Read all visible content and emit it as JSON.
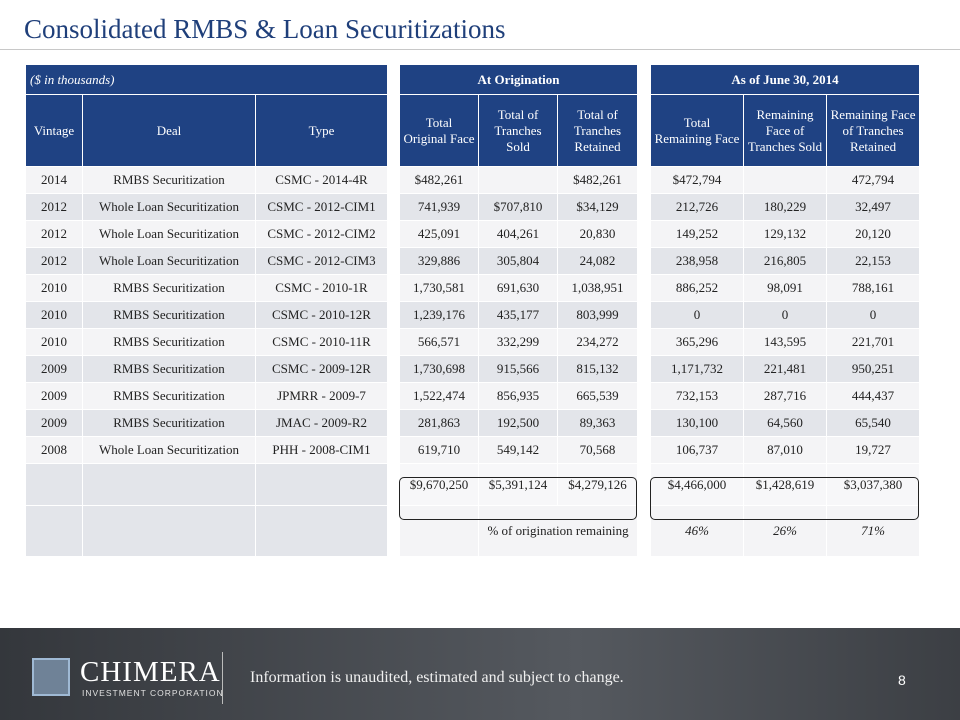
{
  "title": "Consolidated RMBS & Loan Securitizations",
  "table": {
    "note": "($ in thousands)",
    "groups": [
      "At Origination",
      "As of June 30, 2014"
    ],
    "columns": [
      "Vintage",
      "Deal",
      "Type",
      "Total Original Face",
      "Total of Tranches Sold",
      "Total of Tranches Retained",
      "Total Remaining Face",
      "Remaining Face of Tranches Sold",
      "Remaining Face of Tranches Retained"
    ],
    "rows": [
      [
        "2014",
        "RMBS Securitization",
        "CSMC - 2014-4R",
        "$482,261",
        null,
        "$482,261",
        "$472,794",
        null,
        "472,794"
      ],
      [
        "2012",
        "Whole Loan Securitization",
        "CSMC - 2012-CIM1",
        "741,939",
        "$707,810",
        "$34,129",
        "212,726",
        "180,229",
        "32,497"
      ],
      [
        "2012",
        "Whole Loan Securitization",
        "CSMC - 2012-CIM2",
        "425,091",
        "404,261",
        "20,830",
        "149,252",
        "129,132",
        "20,120"
      ],
      [
        "2012",
        "Whole Loan Securitization",
        "CSMC - 2012-CIM3",
        "329,886",
        "305,804",
        "24,082",
        "238,958",
        "216,805",
        "22,153"
      ],
      [
        "2010",
        "RMBS Securitization",
        "CSMC - 2010-1R",
        "1,730,581",
        "691,630",
        "1,038,951",
        "886,252",
        "98,091",
        "788,161"
      ],
      [
        "2010",
        "RMBS Securitization",
        "CSMC - 2010-12R",
        "1,239,176",
        "435,177",
        "803,999",
        "0",
        "0",
        "0"
      ],
      [
        "2010",
        "RMBS Securitization",
        "CSMC - 2010-11R",
        "566,571",
        "332,299",
        "234,272",
        "365,296",
        "143,595",
        "221,701"
      ],
      [
        "2009",
        "RMBS Securitization",
        "CSMC - 2009-12R",
        "1,730,698",
        "915,566",
        "815,132",
        "1,171,732",
        "221,481",
        "950,251"
      ],
      [
        "2009",
        "RMBS Securitization",
        "JPMRR - 2009-7",
        "1,522,474",
        "856,935",
        "665,539",
        "732,153",
        "287,716",
        "444,437"
      ],
      [
        "2009",
        "RMBS Securitization",
        "JMAC - 2009-R2",
        "281,863",
        "192,500",
        "89,363",
        "130,100",
        "64,560",
        "65,540"
      ],
      [
        "2008",
        "Whole Loan Securitization",
        "PHH - 2008-CIM1",
        "619,710",
        "549,142",
        "70,568",
        "106,737",
        "87,010",
        "19,727"
      ]
    ],
    "totals": [
      "$9,670,250",
      "$5,391,124",
      "$4,279,126",
      "$4,466,000",
      "$1,428,619",
      "$3,037,380"
    ],
    "percent_label": "% of origination remaining",
    "percents": [
      "46%",
      "26%",
      "71%"
    ]
  },
  "footer": {
    "logo_name": "CHIMERA",
    "logo_sub": "INVESTMENT CORPORATION",
    "disclaimer": "Information is unaudited, estimated and subject to change.",
    "page_number": 8
  }
}
